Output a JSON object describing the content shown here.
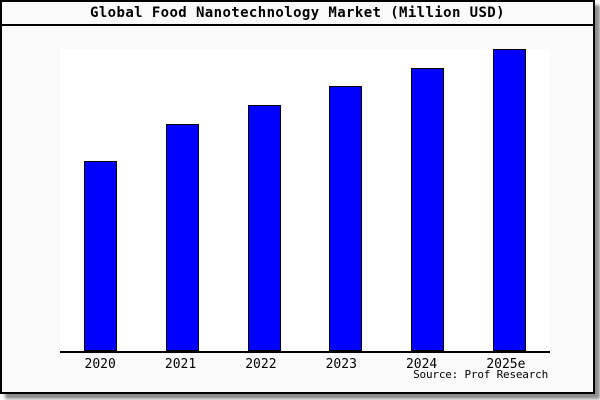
{
  "window": {
    "title": "Global Food Nanotechnology Market (Million USD)"
  },
  "chart_data": {
    "type": "bar",
    "title": "Global Food Nanotechnology Market (Million USD)",
    "categories": [
      "2020",
      "2021",
      "2022",
      "2023",
      "2024",
      "2025e"
    ],
    "values": [
      190,
      227,
      246,
      265,
      283,
      302
    ],
    "units": "relative bar height (y-axis unlabeled in source image)",
    "xlabel": "",
    "ylabel": "",
    "ylim": [
      0,
      302
    ],
    "grid": false,
    "legend": false,
    "source": "Source: Prof Research",
    "bar_color": "#0000ff",
    "bar_border_color": "#000000"
  },
  "colors": {
    "figure_background": "#fafafa",
    "plot_background": "#ffffff",
    "border": "#000000",
    "bar_fill": "#0000ff",
    "shadow": "#8a8a8a"
  }
}
